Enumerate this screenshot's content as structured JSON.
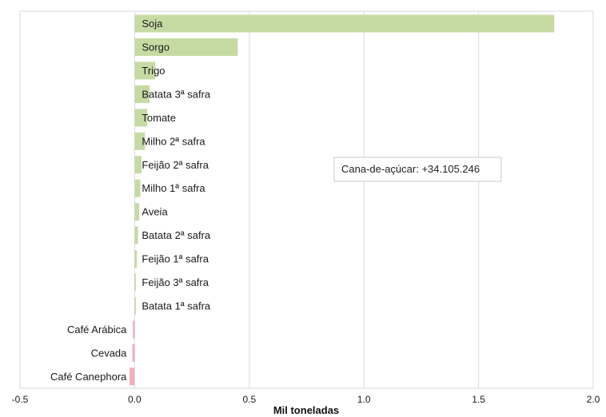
{
  "chart_data": {
    "type": "bar",
    "orientation": "horizontal",
    "xlabel": "Mil toneladas",
    "xlim": [
      -0.5,
      2.0
    ],
    "xticks": [
      "-0.5",
      "0.0",
      "0.5",
      "1.0",
      "1.5",
      "2.0"
    ],
    "grid": true,
    "categories": [
      "Soja",
      "Sorgo",
      "Trigo",
      "Batata 3ª safra",
      "Tomate",
      "Milho 2ª safra",
      "Feijão 2ª safra",
      "Milho 1ª safra",
      "Aveia",
      "Batata 2ª safra",
      "Feijão 1ª safra",
      "Feijão 3ª safra",
      "Batata 1ª safra",
      "Café Arábica",
      "Cevada",
      "Café Canephora"
    ],
    "values": [
      1.83,
      0.45,
      0.09,
      0.065,
      0.055,
      0.045,
      0.03,
      0.025,
      0.02,
      0.015,
      0.01,
      0.004,
      0.004,
      -0.008,
      -0.01,
      -0.022
    ],
    "colors": {
      "positive": "#c6dba3",
      "negative": "#efb1b9"
    },
    "annotation": "Cana-de-açúcar: +34.105.246"
  }
}
